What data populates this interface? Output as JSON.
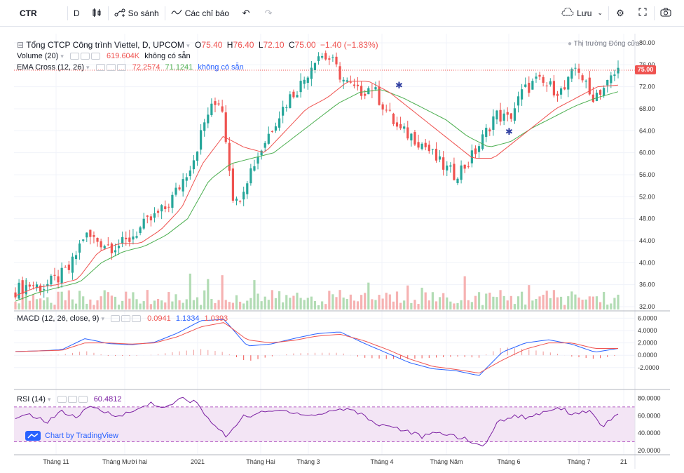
{
  "toolbar": {
    "symbol": "CTR",
    "interval": "D",
    "compare_label": "So sánh",
    "indicators_label": "Các chỉ báo",
    "save_label": "Lưu"
  },
  "main_legend": {
    "title": "Tổng CTCP Công trình Viettel, D, UPCOM",
    "o_label": "O",
    "o_value": "75.40",
    "h_label": "H",
    "h_value": "76.40",
    "l_label": "L",
    "l_value": "72.10",
    "c_label": "C",
    "c_value": "75.00",
    "change": "−1.40 (−1.83%)",
    "market_status": "Thị trường Đóng cửa"
  },
  "volume_legend": {
    "label": "Volume (20)",
    "value": "619.604K",
    "note": "không có sẵn"
  },
  "ema_legend": {
    "label": "EMA Cross (12, 26)",
    "value1": "72.2574",
    "value2": "71.1241",
    "note": "không có sẵn"
  },
  "macd_legend": {
    "label": "MACD (12, 26, close, 9)",
    "value1": "0.0941",
    "value2": "1.1334",
    "value3": "1.0393"
  },
  "rsi_legend": {
    "label": "RSI (14)",
    "value": "60.4812"
  },
  "price_tag": "75.00",
  "watermark": "Chart by TradingView",
  "colors": {
    "up": "#26a69a",
    "down": "#ef5350",
    "ema_fast": "#ef5350",
    "ema_slow": "#4caf50",
    "macd": "#2962ff",
    "signal": "#ef5350",
    "rsi": "#7b1fa2",
    "rsi_band": "#f3e5f5"
  },
  "chart_data": [
    {
      "type": "line",
      "title": "Tổng CTCP Công trình Viettel, D, UPCOM",
      "x_labels": [
        "Tháng 11",
        "Tháng Mười hai",
        "2021",
        "Tháng Hai",
        "Tháng 3",
        "Tháng 4",
        "Tháng Năm",
        "Tháng 6",
        "Tháng 7",
        "21"
      ],
      "y_ticks": [
        "80.00",
        "76.00",
        "72.00",
        "68.00",
        "64.00",
        "60.00",
        "56.00",
        "52.00",
        "48.00",
        "44.00",
        "40.00",
        "36.00",
        "32.00"
      ],
      "ylim": [
        32,
        80
      ],
      "close_anchors": [
        35,
        36,
        35.5,
        37,
        39,
        45,
        44,
        43,
        43.5,
        46,
        48,
        50,
        54,
        59,
        67,
        70,
        50,
        56,
        61,
        66,
        70,
        73,
        78,
        77,
        73,
        71,
        72,
        68,
        64,
        63,
        61,
        58,
        56,
        58,
        62,
        67,
        66,
        71,
        73,
        72,
        71,
        76,
        70,
        72,
        75
      ],
      "ema_fast_anchors": [
        34,
        35.5,
        36,
        37,
        42,
        43.5,
        43.5,
        46,
        50,
        58,
        63,
        61,
        60,
        64,
        68,
        70,
        73,
        73,
        71,
        68,
        65,
        62,
        59,
        59,
        62,
        65,
        68,
        70,
        72,
        72.3
      ],
      "ema_slow_anchors": [
        33,
        34.5,
        35.5,
        36.5,
        40,
        42,
        43,
        45,
        48,
        55,
        58,
        59,
        60,
        63,
        66,
        69,
        71,
        71.5,
        70,
        68,
        66,
        63,
        61,
        62,
        64.5,
        66.5,
        68.5,
        70,
        71.1
      ]
    },
    {
      "type": "line",
      "title": "MACD (12, 26, close, 9)",
      "y_ticks": [
        "6.0000",
        "4.0000",
        "2.0000",
        "0.0000",
        "-2.0000"
      ],
      "ylim": [
        -3.5,
        6.5
      ],
      "macd_anchors": [
        0.6,
        0.7,
        0.9,
        2.7,
        1.9,
        1.7,
        2.1,
        3.6,
        5.6,
        5.8,
        1.5,
        1.8,
        2.7,
        3.5,
        3.8,
        2.0,
        0.4,
        -1.2,
        -2.2,
        -2.5,
        -3.3,
        0.5,
        2.0,
        2.5,
        1.8,
        0.5,
        1.1
      ],
      "signal_anchors": [
        0.6,
        0.7,
        0.8,
        2.0,
        2.0,
        1.8,
        2.0,
        3.0,
        4.6,
        5.3,
        2.5,
        2.0,
        2.4,
        3.1,
        3.4,
        2.4,
        1.0,
        -0.6,
        -1.8,
        -2.3,
        -2.9,
        -0.8,
        1.0,
        2.0,
        2.0,
        1.1,
        1.1
      ],
      "histogram_current": 0.0941
    },
    {
      "type": "line",
      "title": "RSI (14)",
      "y_ticks": [
        "80.0000",
        "60.0000",
        "40.0000",
        "20.0000"
      ],
      "ylim": [
        16,
        86
      ],
      "upper_band": 70,
      "lower_band": 30,
      "rsi_anchors": [
        55,
        62,
        52,
        65,
        58,
        70,
        64,
        60,
        66,
        75,
        68,
        80,
        75,
        52,
        36,
        58,
        62,
        65,
        66,
        62,
        60,
        66,
        68,
        62,
        50,
        48,
        42,
        36,
        40,
        38,
        32,
        24,
        52,
        60,
        58,
        64,
        70,
        62,
        66,
        48,
        60.5
      ]
    }
  ]
}
